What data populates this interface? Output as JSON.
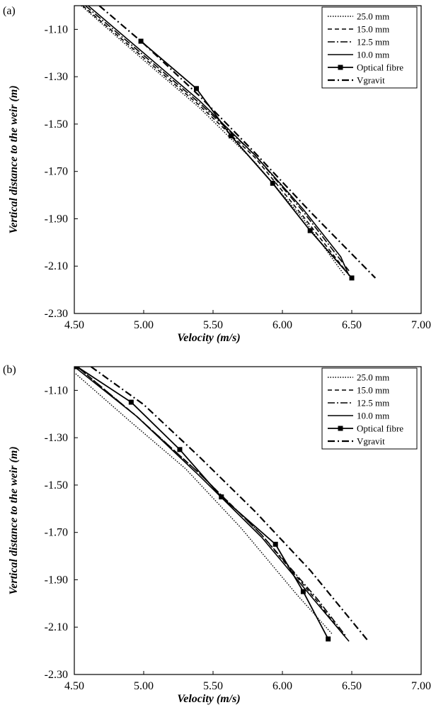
{
  "styles": {
    "25.0 mm": {
      "dash": "1.5,2",
      "width": 1.4,
      "marker": false
    },
    "15.0 mm": {
      "dash": "6,4",
      "width": 1.6,
      "marker": false
    },
    "12.5 mm": {
      "dash": "10,3,2,3",
      "width": 1.6,
      "marker": false
    },
    "10.0 mm": {
      "dash": "",
      "width": 1.6,
      "marker": false
    },
    "Optical fibre": {
      "dash": "",
      "width": 1.8,
      "marker": true
    },
    "Vgravit": {
      "dash": "10,4,2,4",
      "width": 2.2,
      "marker": false
    }
  },
  "chart_data": [
    {
      "panel": "(a)",
      "type": "line",
      "xlabel": "Velocity (m/s)",
      "ylabel": "Vertical distance to the weir (m)",
      "xlim": [
        4.5,
        7.0
      ],
      "ylim": [
        -2.3,
        -1.0
      ],
      "x_ticks": [
        "4.50",
        "5.00",
        "5.50",
        "6.00",
        "6.50",
        "7.00"
      ],
      "y_ticks": [
        "-1.10",
        "-1.30",
        "-1.50",
        "-1.70",
        "-1.90",
        "-2.10",
        "-2.30"
      ],
      "legend": "top-right",
      "series": [
        {
          "name": "25.0 mm",
          "x": [
            4.55,
            5.0,
            5.4,
            5.8,
            6.15,
            6.45
          ],
          "y": [
            -1.0,
            -1.23,
            -1.43,
            -1.66,
            -1.9,
            -2.14
          ]
        },
        {
          "name": "15.0 mm",
          "x": [
            4.56,
            5.0,
            5.4,
            5.8,
            6.15,
            6.47
          ],
          "y": [
            -1.0,
            -1.22,
            -1.42,
            -1.64,
            -1.89,
            -2.13
          ]
        },
        {
          "name": "12.5 mm",
          "x": [
            4.58,
            5.0,
            5.4,
            5.8,
            6.15,
            6.48
          ],
          "y": [
            -1.0,
            -1.21,
            -1.41,
            -1.63,
            -1.87,
            -2.12
          ]
        },
        {
          "name": "10.0 mm",
          "x": [
            4.6,
            5.0,
            5.4,
            5.8,
            6.15,
            6.42,
            6.48
          ],
          "y": [
            -1.0,
            -1.2,
            -1.4,
            -1.63,
            -1.86,
            -2.06,
            -2.14
          ]
        },
        {
          "name": "Optical fibre",
          "x": [
            4.98,
            5.38,
            5.63,
            5.93,
            6.2,
            6.5
          ],
          "y": [
            -1.15,
            -1.35,
            -1.55,
            -1.75,
            -1.95,
            -2.15
          ]
        },
        {
          "name": "Vgravit",
          "x": [
            4.68,
            5.0,
            5.4,
            5.8,
            6.2,
            6.67
          ],
          "y": [
            -1.0,
            -1.16,
            -1.38,
            -1.62,
            -1.87,
            -2.15
          ]
        }
      ]
    },
    {
      "panel": "(b)",
      "type": "line",
      "xlabel": "Velocity (m/s)",
      "ylabel": "Vertical distance to the weir (m)",
      "xlim": [
        4.5,
        7.0
      ],
      "ylim": [
        -2.3,
        -1.0
      ],
      "x_ticks": [
        "4.50",
        "5.00",
        "5.50",
        "6.00",
        "6.50",
        "7.00"
      ],
      "y_ticks": [
        "-1.10",
        "-1.30",
        "-1.50",
        "-1.70",
        "-1.90",
        "-2.10",
        "-2.30"
      ],
      "legend": "top-right",
      "series": [
        {
          "name": "25.0 mm",
          "x": [
            4.51,
            4.9,
            5.3,
            5.7,
            6.1,
            6.36
          ],
          "y": [
            -1.03,
            -1.23,
            -1.43,
            -1.68,
            -1.96,
            -2.13
          ]
        },
        {
          "name": "15.0 mm",
          "x": [
            4.52,
            4.95,
            5.4,
            5.85,
            6.25,
            6.45
          ],
          "y": [
            -1.0,
            -1.21,
            -1.45,
            -1.71,
            -1.99,
            -2.14
          ]
        },
        {
          "name": "12.5 mm",
          "x": [
            4.52,
            4.95,
            5.4,
            5.85,
            6.25,
            6.46
          ],
          "y": [
            -1.0,
            -1.21,
            -1.45,
            -1.71,
            -1.98,
            -2.14
          ]
        },
        {
          "name": "10.0 mm",
          "x": [
            4.5,
            4.95,
            5.4,
            5.85,
            6.25,
            6.48
          ],
          "y": [
            -1.0,
            -1.21,
            -1.46,
            -1.72,
            -2.0,
            -2.16
          ]
        },
        {
          "name": "Optical fibre",
          "x": [
            4.52,
            4.91,
            5.26,
            5.56,
            5.95,
            6.15,
            6.33
          ],
          "y": [
            -1.0,
            -1.15,
            -1.35,
            -1.55,
            -1.75,
            -1.95,
            -2.15
          ]
        },
        {
          "name": "Vgravit",
          "x": [
            4.62,
            5.0,
            5.4,
            5.8,
            6.2,
            6.62
          ],
          "y": [
            -1.0,
            -1.16,
            -1.38,
            -1.61,
            -1.86,
            -2.16
          ]
        }
      ]
    }
  ]
}
